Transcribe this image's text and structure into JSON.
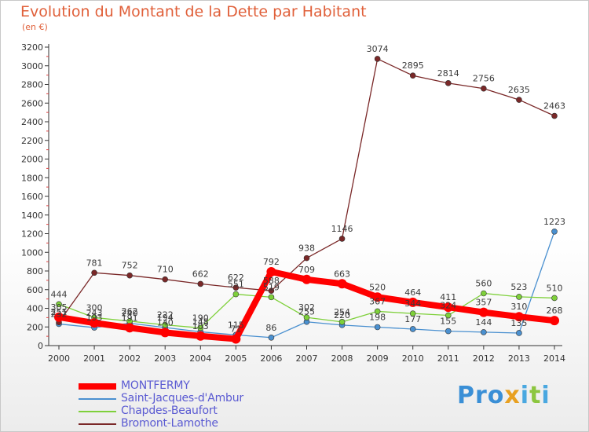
{
  "title": "Evolution du Montant de la Dette par Habitant",
  "subtitle": "(en €)",
  "logo": {
    "text_p": "Pro",
    "text_x": "x",
    "text_i": "i",
    "text_t": "t",
    "text_i2": "i"
  },
  "chart_data": {
    "type": "line",
    "title": "Evolution du Montant de la Dette par Habitant",
    "subtitle": "(en €)",
    "x": [
      "2000",
      "2001",
      "2002",
      "2003",
      "2004",
      "2005",
      "2006",
      "2007",
      "2008",
      "2009",
      "2010",
      "2011",
      "2012",
      "2013",
      "2014"
    ],
    "y_ticks": [
      "0",
      "200",
      "400",
      "600",
      "800",
      "1000",
      "1200",
      "1400",
      "1600",
      "1800",
      "2000",
      "2200",
      "2400",
      "2600",
      "2800",
      "3000",
      "3200"
    ],
    "ylim": [
      0,
      3200
    ],
    "grid": false,
    "legend_placement": "bottom-left",
    "series": [
      {
        "name": "MONTFERMY",
        "color": "#ff0000",
        "values": [
          305,
          243,
          191,
          140,
          103,
          71,
          792,
          709,
          663,
          520,
          464,
          411,
          357,
          310,
          268
        ],
        "labels": [
          "305",
          "243",
          "191",
          "140",
          "103",
          "71",
          "792",
          "709",
          "663",
          "520",
          "464",
          "411",
          "357",
          "310",
          "268"
        ]
      },
      {
        "name": "Saint-Jacques-d'Ambur",
        "color": "#4a90d0",
        "values": [
          232,
          193,
          240,
          194,
          148,
          115,
          86,
          255,
          220,
          198,
          177,
          155,
          144,
          135,
          1223
        ],
        "labels": [
          "232",
          "193",
          "240",
          "194",
          "148",
          "115",
          "86",
          "255",
          "220",
          "198",
          "177",
          "155",
          "144",
          "135",
          "1223"
        ]
      },
      {
        "name": "Chapdes-Beaufort",
        "color": "#7ed03a",
        "values": [
          444,
          300,
          262,
          222,
          190,
          551,
          519,
          302,
          254,
          367,
          344,
          324,
          560,
          523,
          510
        ],
        "labels": [
          "444",
          "300",
          "262",
          "222",
          "190",
          "551",
          "519",
          "302",
          "254",
          "367",
          "344",
          "324",
          "560",
          "523",
          "510"
        ]
      },
      {
        "name": "Bromont-Lamothe",
        "color": "#7a2828",
        "values": [
          251,
          781,
          752,
          710,
          662,
          622,
          588,
          938,
          1146,
          3074,
          2895,
          2814,
          2756,
          2635,
          2463
        ],
        "labels": [
          "251",
          "781",
          "752",
          "710",
          "662",
          "622",
          "588",
          "938",
          "1146",
          "3074",
          "2895",
          "2814",
          "2756",
          "2635",
          "2463"
        ]
      }
    ]
  }
}
